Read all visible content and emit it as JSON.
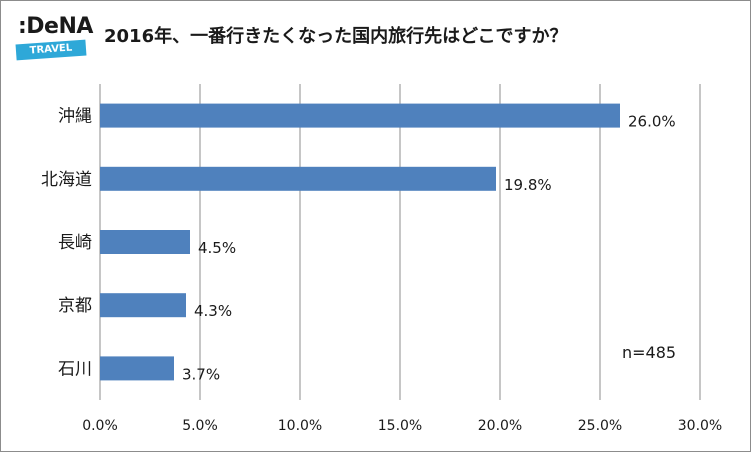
{
  "logo": {
    "text": ":DeNA",
    "sub": "TRAVEL"
  },
  "note": "n=485",
  "colors": {
    "bar": "#4f81bd",
    "grid": "#8c8c8c"
  },
  "chart_data": {
    "type": "bar",
    "orientation": "horizontal",
    "title": "2016年、一番行きたくなった国内旅行先はどこですか？",
    "categories": [
      "沖縄",
      "北海道",
      "長崎",
      "京都",
      "石川"
    ],
    "values": [
      26.0,
      19.8,
      4.5,
      4.3,
      3.7
    ],
    "data_labels": [
      "26.0%",
      "19.8%",
      "4.5%",
      "4.3%",
      "3.7%"
    ],
    "xlim": [
      0,
      30
    ],
    "ticks": [
      0,
      5,
      10,
      15,
      20,
      25,
      30
    ],
    "tick_labels": [
      "0.0%",
      "5.0%",
      "10.0%",
      "15.0%",
      "20.0%",
      "25.0%",
      "30.0%"
    ],
    "grid": true,
    "legend": "none"
  }
}
